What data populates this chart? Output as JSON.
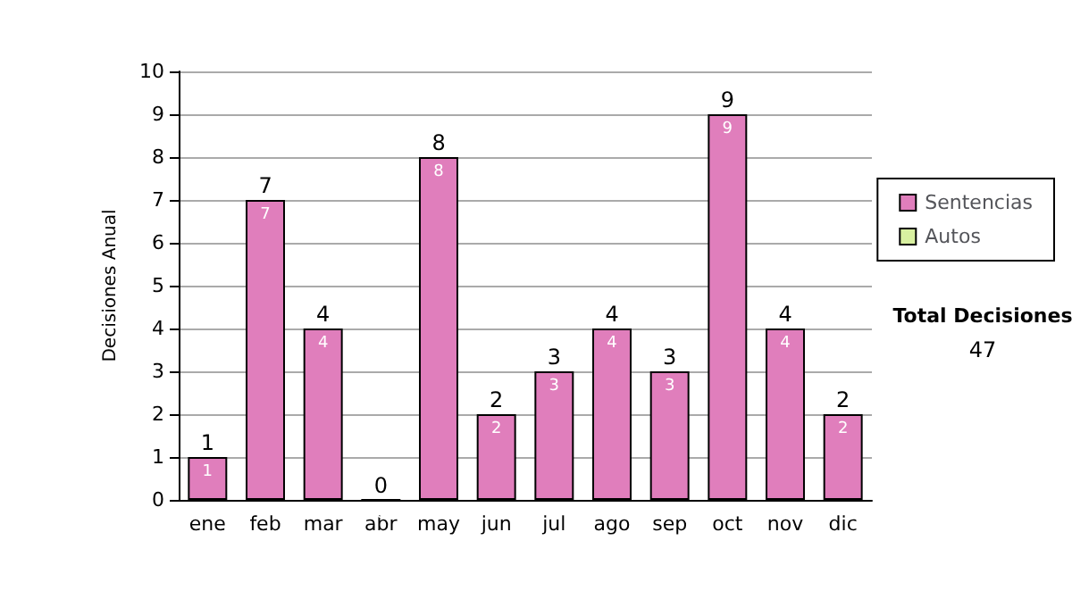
{
  "chart_data": {
    "type": "bar",
    "ylabel": "Decisiones Anual",
    "categories": [
      "ene",
      "feb",
      "mar",
      "abr",
      "may",
      "jun",
      "jul",
      "ago",
      "sep",
      "oct",
      "nov",
      "dic"
    ],
    "series": [
      {
        "name": "Sentencias",
        "color": "#e07ebc",
        "values": [
          1,
          7,
          4,
          0,
          8,
          2,
          3,
          4,
          3,
          9,
          4,
          2
        ]
      },
      {
        "name": "Autos",
        "color": "#d8f0a0",
        "values": [
          null,
          null,
          null,
          null,
          null,
          null,
          null,
          null,
          null,
          null,
          null,
          null
        ]
      }
    ],
    "stacked": true,
    "data_labels": true,
    "totals": [
      "1",
      "7",
      "4",
      "0",
      "8",
      "2",
      "3",
      "4",
      "3",
      "9",
      "4",
      "2"
    ],
    "ylim": [
      0,
      10
    ],
    "yticks": [
      0,
      1,
      2,
      3,
      4,
      5,
      6,
      7,
      8,
      9,
      10
    ],
    "grid": "y",
    "legend": "right",
    "annotations": [
      "Total Decisiones",
      "47"
    ]
  }
}
